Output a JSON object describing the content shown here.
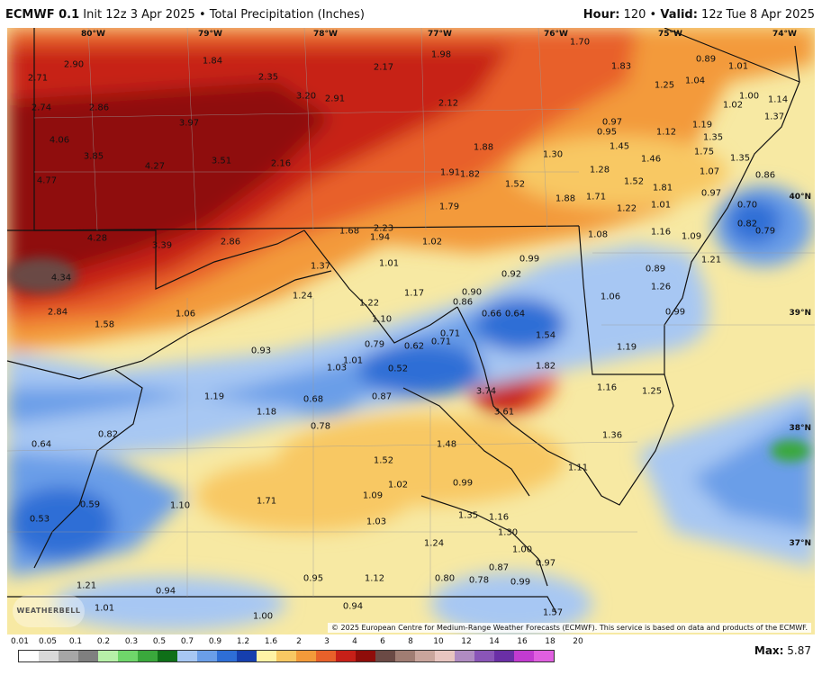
{
  "header": {
    "model": "ECMWF 0.1",
    "init": "Init 12z 3 Apr 2025",
    "product": "Total Precipitation (Inches)",
    "hour_label": "Hour:",
    "hour": "120",
    "valid_label": "Valid:",
    "valid": "12z Tue 8 Apr 2025"
  },
  "lon_labels": [
    "80°W",
    "79°W",
    "78°W",
    "77°W",
    "76°W",
    "75°W",
    "74°W"
  ],
  "lat_labels": [
    "40°N",
    "39°N",
    "38°N",
    "37°N"
  ],
  "credit": "© 2025 European Centre for Medium-Range Weather Forecasts (ECMWF). This service is based on data and products of the ECMWF.",
  "logo": "WEATHERBELL",
  "legend": {
    "labels": [
      "0.01",
      "0.05",
      "0.1",
      "0.2",
      "0.3",
      "0.5",
      "0.7",
      "0.9",
      "1.2",
      "1.6",
      "2",
      "3",
      "4",
      "6",
      "8",
      "10",
      "12",
      "14",
      "16",
      "18",
      "20"
    ],
    "colors": [
      "#ffffff",
      "#d9d9d9",
      "#a6a6a6",
      "#7f7f7f",
      "#b7f0a8",
      "#6fd66a",
      "#3aa83c",
      "#0f6f18",
      "#a7c7f3",
      "#6a9ee8",
      "#2e6ed6",
      "#163fae",
      "#fff3a6",
      "#f8c863",
      "#f39a3a",
      "#e8612a",
      "#c72018",
      "#8f0d0a",
      "#6b4a45",
      "#a07d73",
      "#c9a59c",
      "#e8c5c0",
      "#b08cc2",
      "#8a55b8",
      "#6a2fa6",
      "#c23bd0",
      "#e05fe0"
    ]
  },
  "max_label": "Max:",
  "max_value": "5.87",
  "values": [
    {
      "t": "2.90"
    },
    {
      "t": "2.71"
    },
    {
      "t": "2.74"
    },
    {
      "t": "2.86"
    },
    {
      "t": "4.06"
    },
    {
      "t": "3.85"
    },
    {
      "t": "4.77"
    },
    {
      "t": "3.97"
    },
    {
      "t": "4.27"
    },
    {
      "t": "3.51"
    },
    {
      "t": "1.84"
    },
    {
      "t": "2.35"
    },
    {
      "t": "3.20"
    },
    {
      "t": "2.91"
    },
    {
      "t": "2.16"
    },
    {
      "t": "2.17"
    },
    {
      "t": "1.98"
    },
    {
      "t": "2.12"
    },
    {
      "t": "1.88"
    },
    {
      "t": "1.91"
    },
    {
      "t": "1.82"
    },
    {
      "t": "1.79"
    },
    {
      "t": "1.52"
    },
    {
      "t": "1.30"
    },
    {
      "t": "1.88"
    },
    {
      "t": "1.70"
    },
    {
      "t": "1.83"
    },
    {
      "t": "0.97"
    },
    {
      "t": "0.95"
    },
    {
      "t": "1.12"
    },
    {
      "t": "1.45"
    },
    {
      "t": "1.28"
    },
    {
      "t": "1.71"
    },
    {
      "t": "1.46"
    },
    {
      "t": "1.52"
    },
    {
      "t": "1.81"
    },
    {
      "t": "1.22"
    },
    {
      "t": "0.89"
    },
    {
      "t": "1.25"
    },
    {
      "t": "1.04"
    },
    {
      "t": "1.01"
    },
    {
      "t": "1.02"
    },
    {
      "t": "1.00"
    },
    {
      "t": "1.14"
    },
    {
      "t": "1.19"
    },
    {
      "t": "1.35"
    },
    {
      "t": "1.75"
    },
    {
      "t": "1.07"
    },
    {
      "t": "1.35"
    },
    {
      "t": "0.86"
    },
    {
      "t": "0.97"
    },
    {
      "t": "1.01"
    },
    {
      "t": "0.70"
    },
    {
      "t": "0.82"
    },
    {
      "t": "0.79"
    },
    {
      "t": "1.37"
    },
    {
      "t": "1.21"
    },
    {
      "t": "4.28"
    },
    {
      "t": "3.39"
    },
    {
      "t": "2.86"
    },
    {
      "t": "1.68"
    },
    {
      "t": "2.23"
    },
    {
      "t": "1.94"
    },
    {
      "t": "1.02"
    },
    {
      "t": "4.34"
    },
    {
      "t": "2.84"
    },
    {
      "t": "1.58"
    },
    {
      "t": "1.06"
    },
    {
      "t": "1.37"
    },
    {
      "t": "1.24"
    },
    {
      "t": "1.01"
    },
    {
      "t": "1.17"
    },
    {
      "t": "1.22"
    },
    {
      "t": "1.10"
    },
    {
      "t": "0.90"
    },
    {
      "t": "0.86"
    },
    {
      "t": "0.92"
    },
    {
      "t": "0.99"
    },
    {
      "t": "0.66"
    },
    {
      "t": "0.64"
    },
    {
      "t": "1.08"
    },
    {
      "t": "1.16"
    },
    {
      "t": "1.09"
    },
    {
      "t": "0.89"
    },
    {
      "t": "1.06"
    },
    {
      "t": "1.26"
    },
    {
      "t": "0.99"
    },
    {
      "t": "0.93"
    },
    {
      "t": "0.79"
    },
    {
      "t": "0.62"
    },
    {
      "t": "0.71"
    },
    {
      "t": "0.71"
    },
    {
      "t": "1.54"
    },
    {
      "t": "1.19"
    },
    {
      "t": "1.03"
    },
    {
      "t": "1.01"
    },
    {
      "t": "0.52"
    },
    {
      "t": "1.82"
    },
    {
      "t": "1.19"
    },
    {
      "t": "1.18"
    },
    {
      "t": "0.68"
    },
    {
      "t": "0.87"
    },
    {
      "t": "3.74"
    },
    {
      "t": "3.61"
    },
    {
      "t": "1.16"
    },
    {
      "t": "1.25"
    },
    {
      "t": "0.64"
    },
    {
      "t": "0.82"
    },
    {
      "t": "0.78"
    },
    {
      "t": "1.48"
    },
    {
      "t": "1.36"
    },
    {
      "t": "1.52"
    },
    {
      "t": "1.11"
    },
    {
      "t": "1.71"
    },
    {
      "t": "1.09"
    },
    {
      "t": "1.02"
    },
    {
      "t": "0.99"
    },
    {
      "t": "1.10"
    },
    {
      "t": "0.59"
    },
    {
      "t": "0.53"
    },
    {
      "t": "1.03"
    },
    {
      "t": "1.35"
    },
    {
      "t": "1.16"
    },
    {
      "t": "1.30"
    },
    {
      "t": "1.24"
    },
    {
      "t": "1.00"
    },
    {
      "t": "0.87"
    },
    {
      "t": "0.97"
    },
    {
      "t": "0.80"
    },
    {
      "t": "0.78"
    },
    {
      "t": "0.99"
    },
    {
      "t": "0.95"
    },
    {
      "t": "1.12"
    },
    {
      "t": "1.21"
    },
    {
      "t": "0.94"
    },
    {
      "t": "0.94"
    },
    {
      "t": "1.57"
    },
    {
      "t": "1.01"
    },
    {
      "t": "1.00"
    }
  ]
}
